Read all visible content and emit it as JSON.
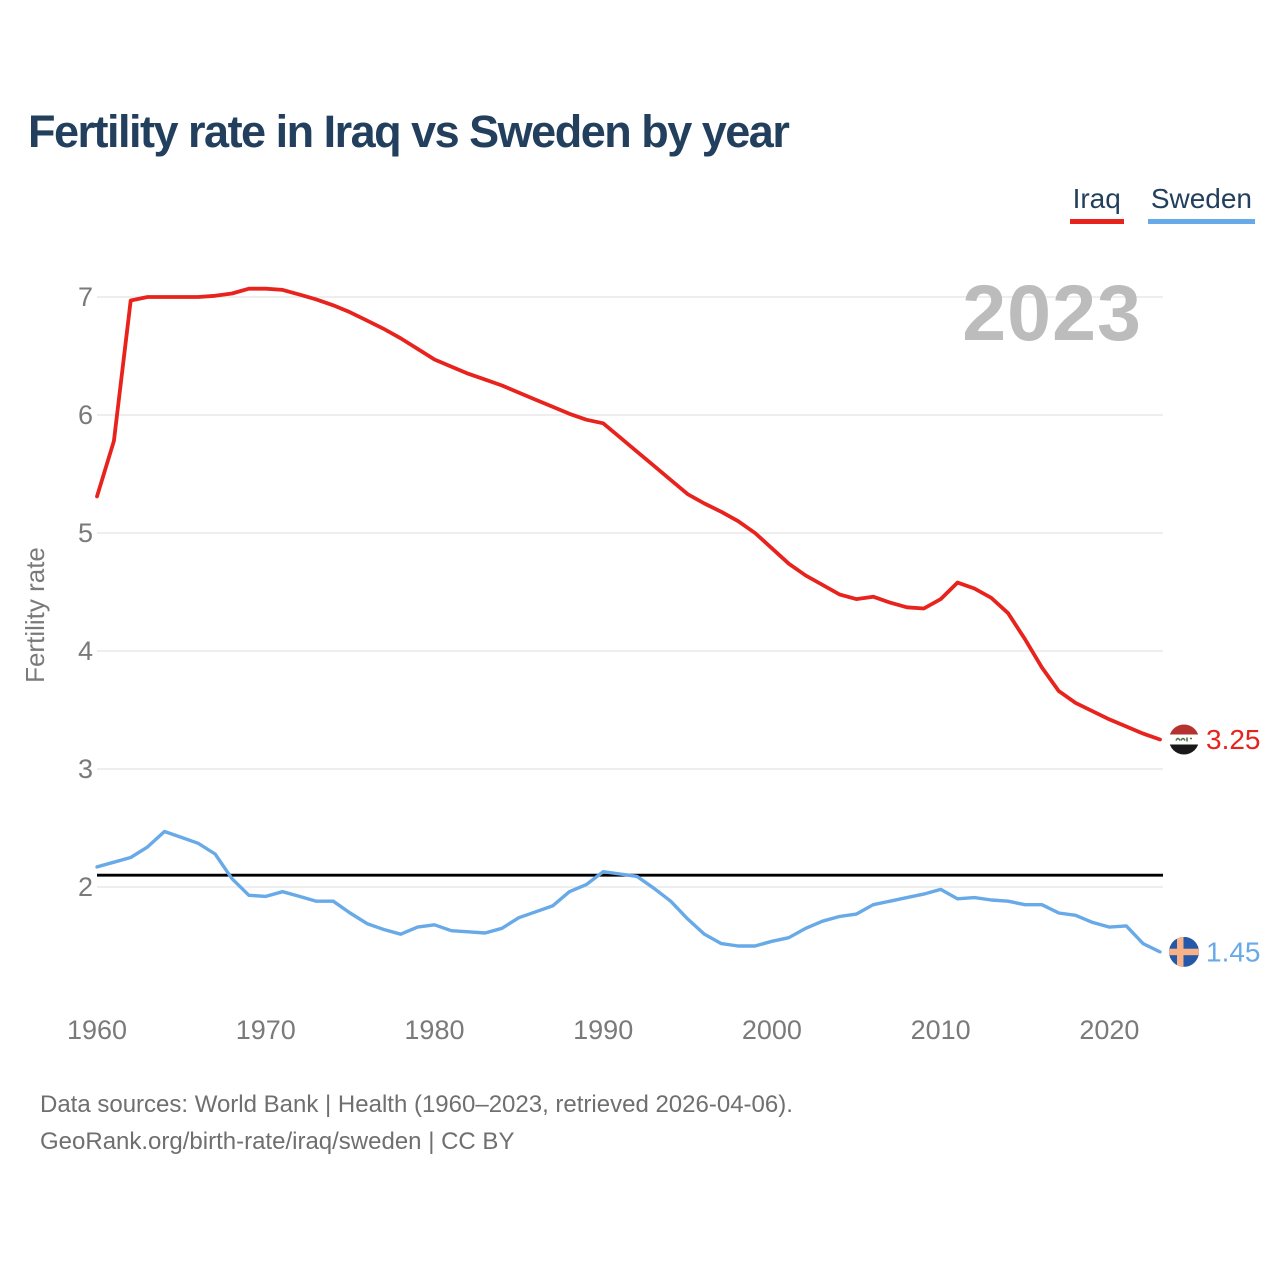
{
  "header": {
    "title": "Fertility rate in Iraq vs Sweden by year"
  },
  "legend": {
    "items": [
      {
        "label": "Iraq",
        "color": "#e8231d"
      },
      {
        "label": "Sweden",
        "color": "#68a9e8"
      }
    ]
  },
  "chart": {
    "watermark": "2023",
    "y_axis_title": "Fertility rate",
    "end_markers": {
      "iraq": {
        "icon": "iraq-flag-icon",
        "value": "3.25"
      },
      "sweden": {
        "icon": "sweden-flag-icon",
        "value": "1.45"
      }
    }
  },
  "colors": {
    "iraq": "#e8231d",
    "sweden": "#68a9e8",
    "reference_line": "#000000",
    "title": "#22405e",
    "axis_text": "#7a7a7a",
    "grid": "#e9e9e9",
    "watermark": "#bcbcbc",
    "footer": "#6f6f6f",
    "iraq_flag_red": "#b5332e",
    "iraq_flag_black": "#191919",
    "iraq_flag_green": "#47793f",
    "sweden_flag_blue": "#2558a8",
    "sweden_flag_cross": "#f7b287"
  },
  "chart_data": {
    "type": "line",
    "title": "Fertility rate in Iraq vs Sweden by year",
    "xlabel": "",
    "ylabel": "Fertility rate",
    "grid": "horizontal",
    "legend_position": "top-right",
    "watermark": "2023",
    "xlim": [
      1960,
      2023
    ],
    "ylim": [
      1.0,
      7.3
    ],
    "xticks": [
      1960,
      1970,
      1980,
      1990,
      2000,
      2010,
      2020
    ],
    "yticks": [
      7,
      6,
      5,
      4,
      3,
      2
    ],
    "reference_line": {
      "value": 2.1,
      "color": "#000000"
    },
    "x": [
      1960,
      1961,
      1962,
      1963,
      1964,
      1965,
      1966,
      1967,
      1968,
      1969,
      1970,
      1971,
      1972,
      1973,
      1974,
      1975,
      1976,
      1977,
      1978,
      1979,
      1980,
      1981,
      1982,
      1983,
      1984,
      1985,
      1986,
      1987,
      1988,
      1989,
      1990,
      1991,
      1992,
      1993,
      1994,
      1995,
      1996,
      1997,
      1998,
      1999,
      2000,
      2001,
      2002,
      2003,
      2004,
      2005,
      2006,
      2007,
      2008,
      2009,
      2010,
      2011,
      2012,
      2013,
      2014,
      2015,
      2016,
      2017,
      2018,
      2019,
      2020,
      2021,
      2022,
      2023
    ],
    "series": [
      {
        "name": "Iraq",
        "color": "#e8231d",
        "end_label": "3.25",
        "values": [
          5.31,
          5.78,
          6.97,
          7.0,
          7.0,
          7.0,
          7.0,
          7.01,
          7.03,
          7.07,
          7.07,
          7.06,
          7.02,
          6.98,
          6.93,
          6.87,
          6.8,
          6.73,
          6.65,
          6.56,
          6.47,
          6.41,
          6.35,
          6.3,
          6.25,
          6.19,
          6.13,
          6.07,
          6.01,
          5.96,
          5.93,
          5.81,
          5.69,
          5.57,
          5.45,
          5.33,
          5.25,
          5.18,
          5.1,
          5.0,
          4.87,
          4.74,
          4.64,
          4.56,
          4.48,
          4.44,
          4.46,
          4.41,
          4.37,
          4.36,
          4.44,
          4.58,
          4.53,
          4.45,
          4.32,
          4.1,
          3.86,
          3.66,
          3.56,
          3.49,
          3.42,
          3.36,
          3.3,
          3.25
        ]
      },
      {
        "name": "Sweden",
        "color": "#68a9e8",
        "end_label": "1.45",
        "values": [
          2.17,
          2.21,
          2.25,
          2.34,
          2.47,
          2.42,
          2.37,
          2.28,
          2.07,
          1.93,
          1.92,
          1.96,
          1.92,
          1.88,
          1.88,
          1.78,
          1.69,
          1.64,
          1.6,
          1.66,
          1.68,
          1.63,
          1.62,
          1.61,
          1.65,
          1.74,
          1.79,
          1.84,
          1.96,
          2.02,
          2.13,
          2.11,
          2.09,
          1.99,
          1.88,
          1.73,
          1.6,
          1.52,
          1.5,
          1.5,
          1.54,
          1.57,
          1.65,
          1.71,
          1.75,
          1.77,
          1.85,
          1.88,
          1.91,
          1.94,
          1.98,
          1.9,
          1.91,
          1.89,
          1.88,
          1.85,
          1.85,
          1.78,
          1.76,
          1.7,
          1.66,
          1.67,
          1.52,
          1.45
        ]
      }
    ]
  },
  "footer": {
    "line1": "Data sources: World Bank | Health (1960–2023, retrieved 2026-04-06).",
    "line2": "GeoRank.org/birth-rate/iraq/sweden | CC BY"
  }
}
